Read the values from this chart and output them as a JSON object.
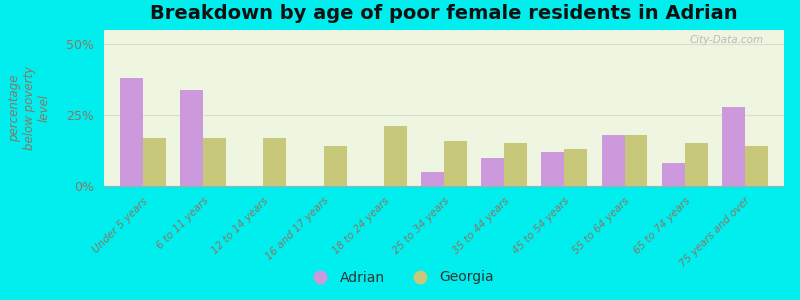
{
  "title": "Breakdown by age of poor female residents in Adrian",
  "ylabel": "percentage\nbelow poverty\nlevel",
  "categories": [
    "Under 5 years",
    "6 to 11 years",
    "12 to 14 years",
    "16 and 17 years",
    "18 to 24 years",
    "25 to 34 years",
    "35 to 44 years",
    "45 to 54 years",
    "55 to 64 years",
    "65 to 74 years",
    "75 years and over"
  ],
  "adrian_values": [
    38,
    34,
    0,
    0,
    0,
    5,
    10,
    12,
    18,
    8,
    28
  ],
  "georgia_values": [
    17,
    17,
    17,
    14,
    21,
    16,
    15,
    13,
    18,
    15,
    14
  ],
  "adrian_color": "#cc99dd",
  "georgia_color": "#c8c87a",
  "background_color": "#00eeee",
  "plot_bg": "#eef5e0",
  "ylim": [
    0,
    55
  ],
  "yticks": [
    0,
    25,
    50
  ],
  "ytick_labels": [
    "0%",
    "25%",
    "50%"
  ],
  "bar_width": 0.38,
  "title_fontsize": 14,
  "watermark": "City-Data.com"
}
